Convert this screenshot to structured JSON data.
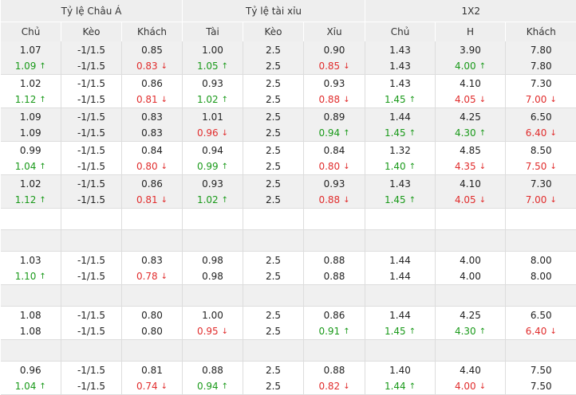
{
  "headers": {
    "groups": [
      "Tỷ lệ Châu Á",
      "Tỷ lệ tài xỉu",
      "1X2"
    ],
    "columns": [
      "Chủ",
      "Kèo",
      "Khách",
      "Tài",
      "Kèo",
      "Xỉu",
      "Chủ",
      "H",
      "Khách"
    ]
  },
  "arrows": {
    "up": "↑",
    "down": "↓"
  },
  "arrow_icons": {
    "up": "arrow-up-icon",
    "down": "arrow-down-icon"
  },
  "colors": {
    "up": "#1a9a1a",
    "down": "#e12d2d",
    "header_bg": "#eeeeee",
    "row_alt_bg": "#f0f0f0"
  },
  "rows": [
    {
      "style": "odd",
      "cells": [
        [
          {
            "v": "1.07"
          },
          {
            "v": "1.09",
            "t": "up"
          }
        ],
        [
          {
            "v": "-1/1.5"
          },
          {
            "v": "-1/1.5"
          }
        ],
        [
          {
            "v": "0.85"
          },
          {
            "v": "0.83",
            "t": "down"
          }
        ],
        [
          {
            "v": "1.00"
          },
          {
            "v": "1.05",
            "t": "up"
          }
        ],
        [
          {
            "v": "2.5"
          },
          {
            "v": "2.5"
          }
        ],
        [
          {
            "v": "0.90"
          },
          {
            "v": "0.85",
            "t": "down"
          }
        ],
        [
          {
            "v": "1.43"
          },
          {
            "v": "1.43"
          }
        ],
        [
          {
            "v": "3.90"
          },
          {
            "v": "4.00",
            "t": "up"
          }
        ],
        [
          {
            "v": "7.80"
          },
          {
            "v": "7.80"
          }
        ]
      ]
    },
    {
      "style": "even",
      "cells": [
        [
          {
            "v": "1.02"
          },
          {
            "v": "1.12",
            "t": "up"
          }
        ],
        [
          {
            "v": "-1/1.5"
          },
          {
            "v": "-1/1.5"
          }
        ],
        [
          {
            "v": "0.86"
          },
          {
            "v": "0.81",
            "t": "down"
          }
        ],
        [
          {
            "v": "0.93"
          },
          {
            "v": "1.02",
            "t": "up"
          }
        ],
        [
          {
            "v": "2.5"
          },
          {
            "v": "2.5"
          }
        ],
        [
          {
            "v": "0.93"
          },
          {
            "v": "0.88",
            "t": "down"
          }
        ],
        [
          {
            "v": "1.43"
          },
          {
            "v": "1.45",
            "t": "up"
          }
        ],
        [
          {
            "v": "4.10"
          },
          {
            "v": "4.05",
            "t": "down"
          }
        ],
        [
          {
            "v": "7.30"
          },
          {
            "v": "7.00",
            "t": "down"
          }
        ]
      ]
    },
    {
      "style": "odd",
      "cells": [
        [
          {
            "v": "1.09"
          },
          {
            "v": "1.09"
          }
        ],
        [
          {
            "v": "-1/1.5"
          },
          {
            "v": "-1/1.5"
          }
        ],
        [
          {
            "v": "0.83"
          },
          {
            "v": "0.83"
          }
        ],
        [
          {
            "v": "1.01"
          },
          {
            "v": "0.96",
            "t": "down"
          }
        ],
        [
          {
            "v": "2.5"
          },
          {
            "v": "2.5"
          }
        ],
        [
          {
            "v": "0.89"
          },
          {
            "v": "0.94",
            "t": "up"
          }
        ],
        [
          {
            "v": "1.44"
          },
          {
            "v": "1.45",
            "t": "up"
          }
        ],
        [
          {
            "v": "4.25"
          },
          {
            "v": "4.30",
            "t": "up"
          }
        ],
        [
          {
            "v": "6.50"
          },
          {
            "v": "6.40",
            "t": "down"
          }
        ]
      ]
    },
    {
      "style": "even",
      "cells": [
        [
          {
            "v": "0.99"
          },
          {
            "v": "1.04",
            "t": "up"
          }
        ],
        [
          {
            "v": "-1/1.5"
          },
          {
            "v": "-1/1.5"
          }
        ],
        [
          {
            "v": "0.84"
          },
          {
            "v": "0.80",
            "t": "down"
          }
        ],
        [
          {
            "v": "0.94"
          },
          {
            "v": "0.99",
            "t": "up"
          }
        ],
        [
          {
            "v": "2.5"
          },
          {
            "v": "2.5"
          }
        ],
        [
          {
            "v": "0.84"
          },
          {
            "v": "0.80",
            "t": "down"
          }
        ],
        [
          {
            "v": "1.32"
          },
          {
            "v": "1.40",
            "t": "up"
          }
        ],
        [
          {
            "v": "4.85"
          },
          {
            "v": "4.35",
            "t": "down"
          }
        ],
        [
          {
            "v": "8.50"
          },
          {
            "v": "7.50",
            "t": "down"
          }
        ]
      ]
    },
    {
      "style": "odd",
      "cells": [
        [
          {
            "v": "1.02"
          },
          {
            "v": "1.12",
            "t": "up"
          }
        ],
        [
          {
            "v": "-1/1.5"
          },
          {
            "v": "-1/1.5"
          }
        ],
        [
          {
            "v": "0.86"
          },
          {
            "v": "0.81",
            "t": "down"
          }
        ],
        [
          {
            "v": "0.93"
          },
          {
            "v": "1.02",
            "t": "up"
          }
        ],
        [
          {
            "v": "2.5"
          },
          {
            "v": "2.5"
          }
        ],
        [
          {
            "v": "0.93"
          },
          {
            "v": "0.88",
            "t": "down"
          }
        ],
        [
          {
            "v": "1.43"
          },
          {
            "v": "1.45",
            "t": "up"
          }
        ],
        [
          {
            "v": "4.10"
          },
          {
            "v": "4.05",
            "t": "down"
          }
        ],
        [
          {
            "v": "7.30"
          },
          {
            "v": "7.00",
            "t": "down"
          }
        ]
      ]
    },
    {
      "style": "even",
      "empty": true
    },
    {
      "style": "odd",
      "empty": true
    },
    {
      "style": "even",
      "cells": [
        [
          {
            "v": "1.03"
          },
          {
            "v": "1.10",
            "t": "up"
          }
        ],
        [
          {
            "v": "-1/1.5"
          },
          {
            "v": "-1/1.5"
          }
        ],
        [
          {
            "v": "0.83"
          },
          {
            "v": "0.78",
            "t": "down"
          }
        ],
        [
          {
            "v": "0.98"
          },
          {
            "v": "0.98"
          }
        ],
        [
          {
            "v": "2.5"
          },
          {
            "v": "2.5"
          }
        ],
        [
          {
            "v": "0.88"
          },
          {
            "v": "0.88"
          }
        ],
        [
          {
            "v": "1.44"
          },
          {
            "v": "1.44"
          }
        ],
        [
          {
            "v": "4.00"
          },
          {
            "v": "4.00"
          }
        ],
        [
          {
            "v": "8.00"
          },
          {
            "v": "8.00"
          }
        ]
      ]
    },
    {
      "style": "odd",
      "empty": true
    },
    {
      "style": "even",
      "cells": [
        [
          {
            "v": "1.08"
          },
          {
            "v": "1.08"
          }
        ],
        [
          {
            "v": "-1/1.5"
          },
          {
            "v": "-1/1.5"
          }
        ],
        [
          {
            "v": "0.80"
          },
          {
            "v": "0.80"
          }
        ],
        [
          {
            "v": "1.00"
          },
          {
            "v": "0.95",
            "t": "down"
          }
        ],
        [
          {
            "v": "2.5"
          },
          {
            "v": "2.5"
          }
        ],
        [
          {
            "v": "0.86"
          },
          {
            "v": "0.91",
            "t": "up"
          }
        ],
        [
          {
            "v": "1.44"
          },
          {
            "v": "1.45",
            "t": "up"
          }
        ],
        [
          {
            "v": "4.25"
          },
          {
            "v": "4.30",
            "t": "up"
          }
        ],
        [
          {
            "v": "6.50"
          },
          {
            "v": "6.40",
            "t": "down"
          }
        ]
      ]
    },
    {
      "style": "odd",
      "empty": true
    },
    {
      "style": "even",
      "cells": [
        [
          {
            "v": "0.96"
          },
          {
            "v": "1.04",
            "t": "up"
          }
        ],
        [
          {
            "v": "-1/1.5"
          },
          {
            "v": "-1/1.5"
          }
        ],
        [
          {
            "v": "0.81"
          },
          {
            "v": "0.74",
            "t": "down"
          }
        ],
        [
          {
            "v": "0.88"
          },
          {
            "v": "0.94",
            "t": "up"
          }
        ],
        [
          {
            "v": "2.5"
          },
          {
            "v": "2.5"
          }
        ],
        [
          {
            "v": "0.88"
          },
          {
            "v": "0.82",
            "t": "down"
          }
        ],
        [
          {
            "v": "1.40"
          },
          {
            "v": "1.44",
            "t": "up"
          }
        ],
        [
          {
            "v": "4.40"
          },
          {
            "v": "4.00",
            "t": "down"
          }
        ],
        [
          {
            "v": "7.50"
          },
          {
            "v": "7.50"
          }
        ]
      ]
    }
  ]
}
